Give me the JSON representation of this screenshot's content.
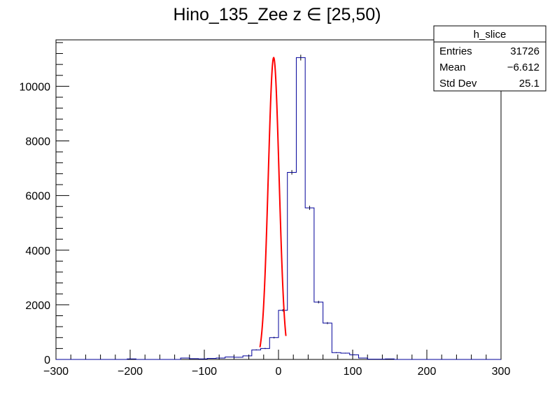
{
  "chart_data": {
    "type": "bar",
    "title": "Hino_135_Zee z  ∈ [25,50)",
    "xlabel": "",
    "ylabel": "",
    "xlim": [
      -300,
      300
    ],
    "ylim": [
      0,
      11700
    ],
    "x_ticks": [
      -300,
      -200,
      -100,
      0,
      100,
      200,
      300
    ],
    "y_ticks": [
      0,
      2000,
      4000,
      6000,
      8000,
      10000
    ],
    "bin_width": 12,
    "bin_edges_start": -300,
    "values": [
      0,
      0,
      0,
      0,
      0,
      0,
      0,
      0,
      20,
      0,
      0,
      0,
      0,
      0,
      50,
      30,
      20,
      40,
      50,
      90,
      80,
      130,
      350,
      400,
      800,
      1800,
      6850,
      11050,
      5550,
      2100,
      1330,
      250,
      230,
      170,
      50,
      10,
      10,
      20,
      0,
      0,
      0,
      0,
      0,
      0,
      0,
      0,
      0,
      0,
      0,
      0
    ],
    "fit": {
      "name": "gaus",
      "mean": -6.5,
      "sigma": 7.3,
      "amplitude": 11050,
      "range": [
        -25,
        10
      ]
    },
    "colors": {
      "histogram": "#000099",
      "fit": "#ff0000",
      "frame": "#000000"
    },
    "stats": {
      "title": "h_slice",
      "rows": [
        {
          "label": "Entries",
          "value": "31726"
        },
        {
          "label": "Mean",
          "value": "−6.612"
        },
        {
          "label": "Std Dev",
          "value": "25.1"
        }
      ]
    }
  }
}
